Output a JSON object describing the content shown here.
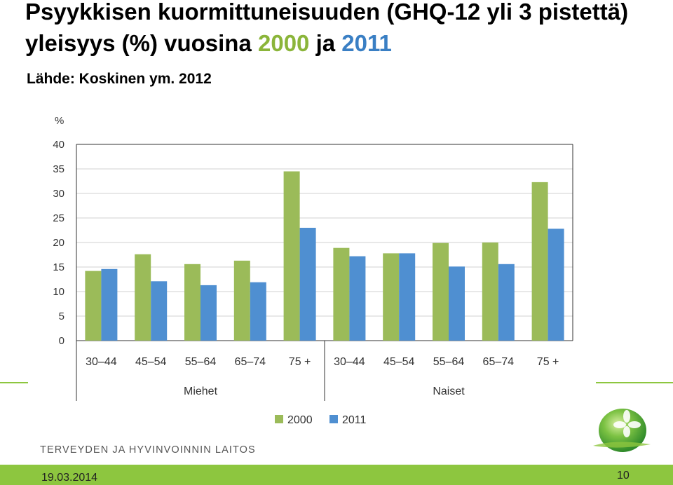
{
  "slide": {
    "title_part1": "Psyykkisen kuormittuneisuuden (GHQ-12 yli 3 pistettä) yleisyys (%) vuosina",
    "title_year1": "2000",
    "title_and": "ja",
    "title_year2": "2011",
    "source": "Lähde: Koskinen ym. 2012",
    "logo_text": "TERVEYDEN JA HYVINVOINNIN LAITOS",
    "date": "19.03.2014",
    "page_number": "10"
  },
  "colors": {
    "series_2000": "#9bbb59",
    "series_2011": "#4f8fd1",
    "accent_green": "#8dc63f",
    "year2011_text": "#3a7fc4"
  },
  "chart_data": {
    "type": "bar",
    "ylabel": "%",
    "ylim": [
      0,
      40
    ],
    "yticks": [
      0,
      5,
      10,
      15,
      20,
      25,
      30,
      35,
      40
    ],
    "grid": true,
    "legend_position": "bottom",
    "categories": [
      "30–44",
      "45–54",
      "55–64",
      "65–74",
      "75 +",
      "30–44",
      "45–54",
      "55–64",
      "65–74",
      "75 +"
    ],
    "groups": [
      {
        "label": "Miehet",
        "start": 0,
        "count": 5
      },
      {
        "label": "Naiset",
        "start": 5,
        "count": 5
      }
    ],
    "series": [
      {
        "name": "2000",
        "values": [
          14.2,
          17.6,
          15.6,
          16.3,
          34.5,
          18.9,
          17.8,
          19.9,
          20.0,
          32.3
        ]
      },
      {
        "name": "2011",
        "values": [
          14.6,
          12.1,
          11.3,
          11.9,
          23.0,
          17.2,
          17.8,
          15.1,
          15.6,
          22.8
        ]
      }
    ]
  }
}
